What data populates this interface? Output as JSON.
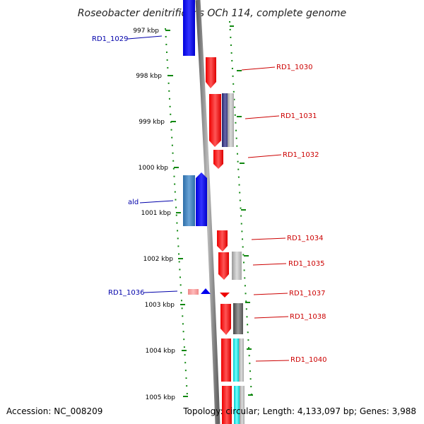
{
  "title": "Roseobacter denitrificans OCh 114, complete genome",
  "accession": "Accession: NC_008209",
  "summary": "Topology: circular; Length: 4,133,097 bp; Genes: 3,988",
  "colors": {
    "forward": "#0000ee",
    "reverse": "#ee0000",
    "backbone": "#888888",
    "ticks": "#118811"
  },
  "ruler": [
    {
      "label": "997 kbp"
    },
    {
      "label": "998 kbp"
    },
    {
      "label": "999 kbp"
    },
    {
      "label": "1000 kbp"
    },
    {
      "label": "1001 kbp"
    },
    {
      "label": "1002 kbp"
    },
    {
      "label": "1003 kbp"
    },
    {
      "label": "1004 kbp"
    },
    {
      "label": "1005 kbp"
    }
  ],
  "gene_labels_left": [
    {
      "text": "RD1_1029",
      "color": "#0000aa"
    },
    {
      "text": "ald",
      "color": "#0000aa"
    },
    {
      "text": "RD1_1036",
      "color": "#0000aa"
    }
  ],
  "gene_labels_right": [
    {
      "text": "RD1_1030",
      "color": "#cc0000"
    },
    {
      "text": "RD1_1031",
      "color": "#cc0000"
    },
    {
      "text": "RD1_1032",
      "color": "#cc0000"
    },
    {
      "text": "RD1_1034",
      "color": "#cc0000"
    },
    {
      "text": "RD1_1035",
      "color": "#cc0000"
    },
    {
      "text": "RD1_1037",
      "color": "#cc0000"
    },
    {
      "text": "RD1_1038",
      "color": "#cc0000"
    },
    {
      "text": "RD1_1040",
      "color": "#cc0000"
    }
  ]
}
